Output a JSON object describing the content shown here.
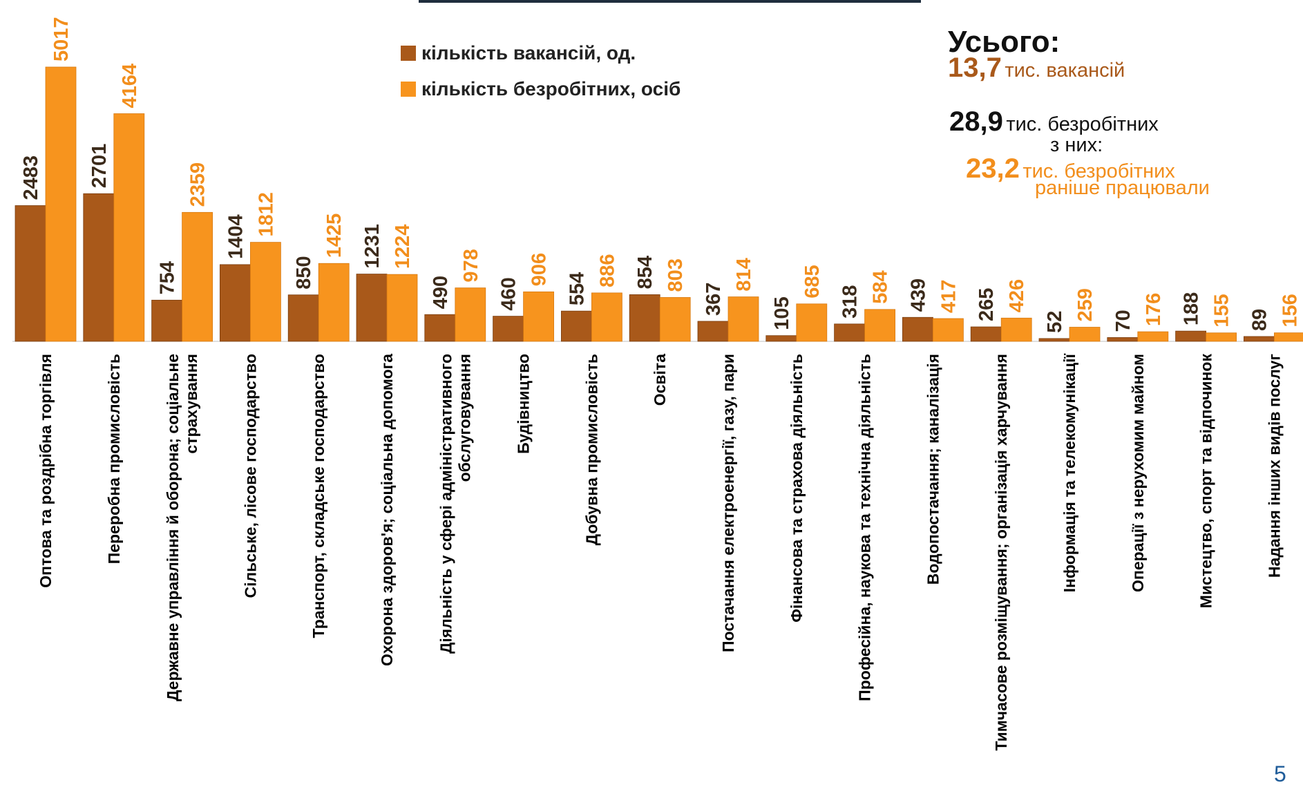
{
  "legend": {
    "vacancies": "кількість вакансій, од.",
    "unemployed": "кількість безробітних, осіб"
  },
  "summary": {
    "title": "Усього:",
    "vacancies_value": "13,7",
    "vacancies_text": "тис. вакансій",
    "unemployed_value": "28,9",
    "unemployed_text": "тис. безробітних",
    "of_them": "з них:",
    "previously_value": "23,2",
    "previously_text_1": "тис. безробітних",
    "previously_text_2": "раніше працювали"
  },
  "page_number": "5",
  "colors": {
    "vacancies": "#a9591a",
    "unemployed": "#f7941e",
    "vacancies_label": "#3b2a1a",
    "unemployed_label": "#f28e1c"
  },
  "chart_data": {
    "type": "bar",
    "categories": [
      [
        "Оптова та роздрібна торгівля"
      ],
      [
        "Переробна промисловість"
      ],
      [
        "Державне управління й оборона; соціальне",
        "страхування"
      ],
      [
        "Сільське, лісове господарство"
      ],
      [
        "Транспорт, складське господарство"
      ],
      [
        "Охорона здоров'я; соціальна допомога"
      ],
      [
        "Діяльність у сфері адміністративного",
        "обслуговування"
      ],
      [
        "Будівництво"
      ],
      [
        "Добувна промисловість"
      ],
      [
        "Освіта"
      ],
      [
        "Постачання електроенергії, газу, пари"
      ],
      [
        "Фінансова та страхова діяльність"
      ],
      [
        "Професійна, наукова та технічна діяльність"
      ],
      [
        "Водопостачання; каналізація"
      ],
      [
        "Тимчасове розміщування; організація харчування"
      ],
      [
        "Інформація та телекомунікації"
      ],
      [
        "Операції з нерухомим майном"
      ],
      [
        "Мистецтво, спорт та відпочинок"
      ],
      [
        "Надання інших видів послуг"
      ]
    ],
    "series": [
      {
        "name": "кількість вакансій, од.",
        "values": [
          2483,
          2701,
          754,
          1404,
          850,
          1231,
          490,
          460,
          554,
          854,
          367,
          105,
          318,
          439,
          265,
          52,
          70,
          188,
          89
        ]
      },
      {
        "name": "кількість безробітних, осіб",
        "values": [
          5017,
          4164,
          2359,
          1812,
          1425,
          1224,
          978,
          906,
          886,
          803,
          814,
          685,
          584,
          417,
          426,
          259,
          176,
          155,
          156
        ]
      }
    ],
    "ylim": [
      0,
      5017
    ],
    "grid": false,
    "legend_position": "top-center"
  }
}
